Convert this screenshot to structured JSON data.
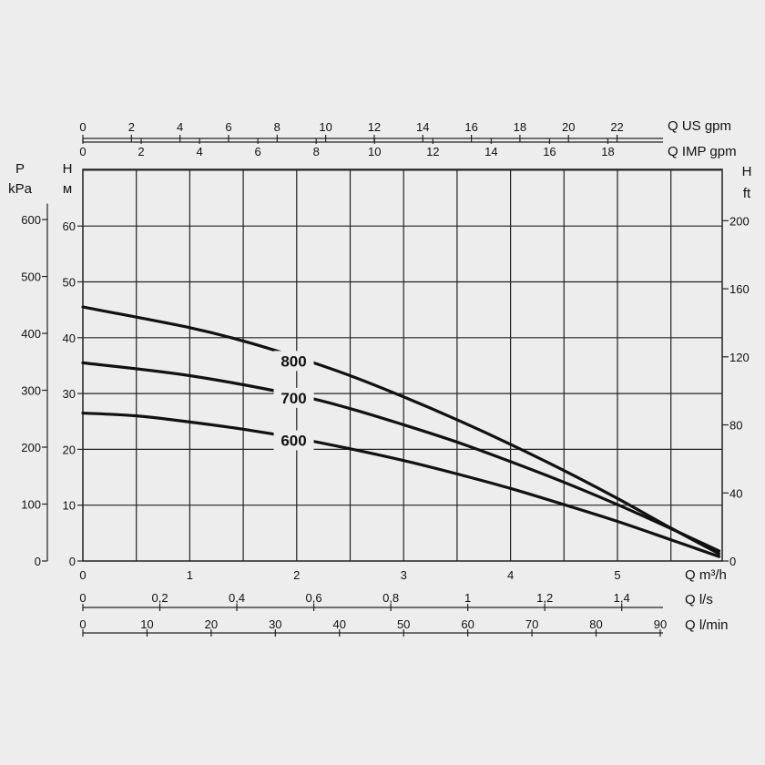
{
  "chart_data": {
    "type": "line",
    "x_axis": {
      "unit": "Q m³/h",
      "range": [
        0,
        6
      ],
      "ticks": [
        "0",
        "1",
        "2",
        "3",
        "4",
        "5"
      ]
    },
    "secondary_x_axes": [
      {
        "unit": "Q US gpm",
        "ticks": [
          "0",
          "2",
          "4",
          "6",
          "8",
          "10",
          "12",
          "14",
          "16",
          "18",
          "20",
          "22"
        ]
      },
      {
        "unit": "Q IMP gpm",
        "ticks": [
          "0",
          "2",
          "4",
          "6",
          "8",
          "10",
          "12",
          "14",
          "16",
          "18"
        ]
      },
      {
        "unit": "Q l/s",
        "ticks": [
          "0",
          "0,2",
          "0,4",
          "0,6",
          "0,8",
          "1",
          "1,2",
          "1,4"
        ]
      },
      {
        "unit": "Q l/min",
        "ticks": [
          "0",
          "10",
          "20",
          "30",
          "40",
          "50",
          "60",
          "70",
          "80",
          "90"
        ]
      }
    ],
    "y_axis": {
      "label": "H",
      "unit": "м",
      "range": [
        0,
        70
      ],
      "ticks": [
        "0",
        "10",
        "20",
        "30",
        "40",
        "50",
        "60"
      ]
    },
    "secondary_y_axes": [
      {
        "label": "P",
        "unit": "kPa",
        "ticks": [
          "0",
          "100",
          "200",
          "300",
          "400",
          "500",
          "600"
        ]
      },
      {
        "label": "H",
        "unit": "ft",
        "ticks": [
          "0",
          "40",
          "80",
          "120",
          "160",
          "200"
        ]
      }
    ],
    "grid": true,
    "series": [
      {
        "name": "800",
        "x": [
          0,
          1,
          1.5,
          2,
          2.5,
          3,
          3.5,
          4,
          4.5,
          5,
          5.5,
          5.95
        ],
        "y": [
          45.5,
          41.8,
          39.4,
          36.5,
          33.2,
          29.4,
          25.3,
          20.9,
          16.2,
          11.2,
          5.9,
          1.3
        ]
      },
      {
        "name": "700",
        "x": [
          0,
          1,
          2,
          2.5,
          3,
          3.5,
          4,
          4.5,
          5,
          5.5,
          5.95
        ],
        "y": [
          35.5,
          33.2,
          29.7,
          27.3,
          24.4,
          21.3,
          17.8,
          14.1,
          10.1,
          5.8,
          1.8
        ]
      },
      {
        "name": "600",
        "x": [
          0,
          0.5,
          1,
          1.5,
          2,
          2.5,
          3,
          3.5,
          4,
          4.5,
          5,
          5.5,
          5.95
        ],
        "y": [
          26.5,
          26,
          24.9,
          23.6,
          22,
          20.1,
          18,
          15.6,
          13,
          10.1,
          7.1,
          3.8,
          0.8
        ]
      }
    ]
  }
}
